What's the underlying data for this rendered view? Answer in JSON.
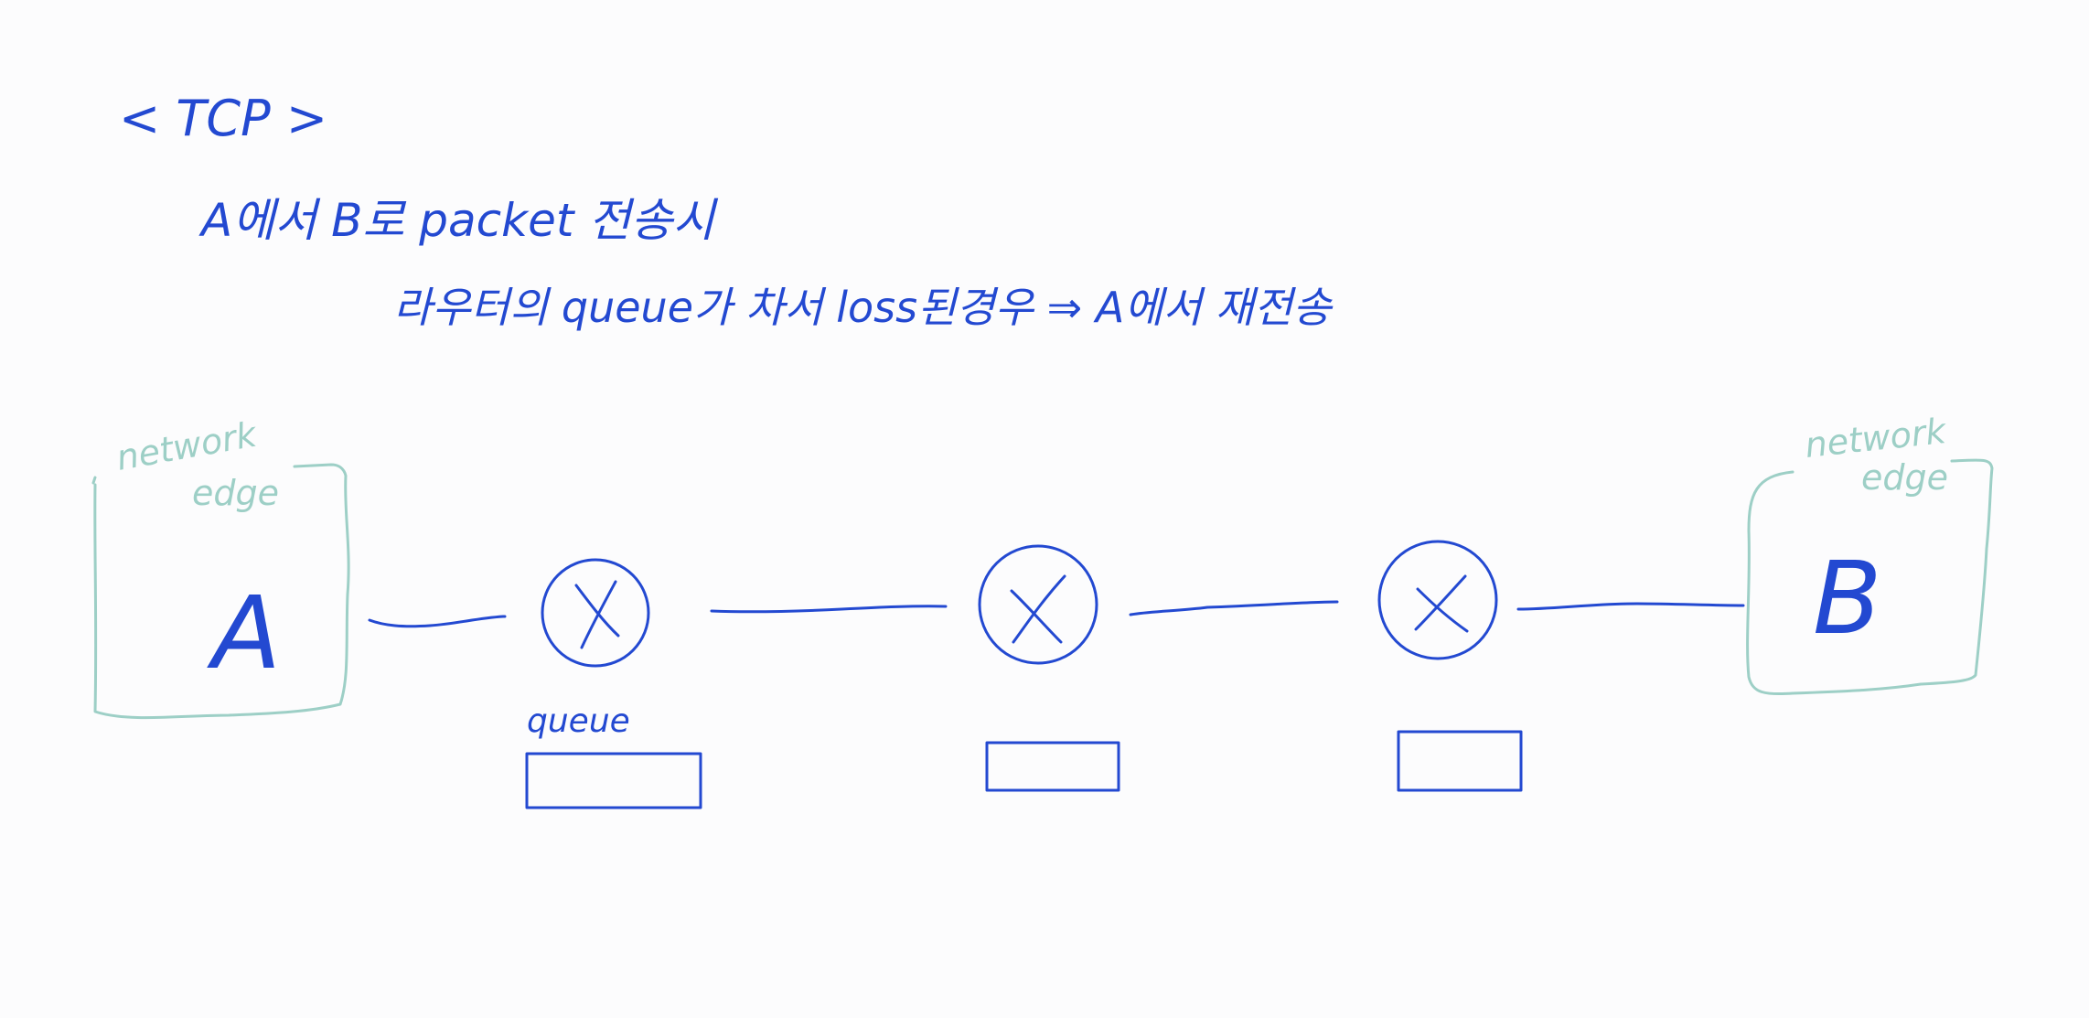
{
  "colors": {
    "ink": "#2349d1",
    "edge": "#9dcfc6",
    "background": "#fcfcfd"
  },
  "heading": {
    "title": "< TCP >"
  },
  "notes": {
    "line1": "A에서 B로 packet 전송시",
    "line2": "라우터의 queue가 차서 loss된경우 ⇒ A에서 재전송"
  },
  "diagram": {
    "hosts": [
      {
        "label": "A",
        "edge_label_1": "network",
        "edge_label_2": "edge"
      },
      {
        "label": "B",
        "edge_label_1": "network",
        "edge_label_2": "edge"
      }
    ],
    "routers": [
      {
        "symbol": "X"
      },
      {
        "symbol": "X"
      },
      {
        "symbol": "X"
      }
    ],
    "queue_label": "queue"
  }
}
